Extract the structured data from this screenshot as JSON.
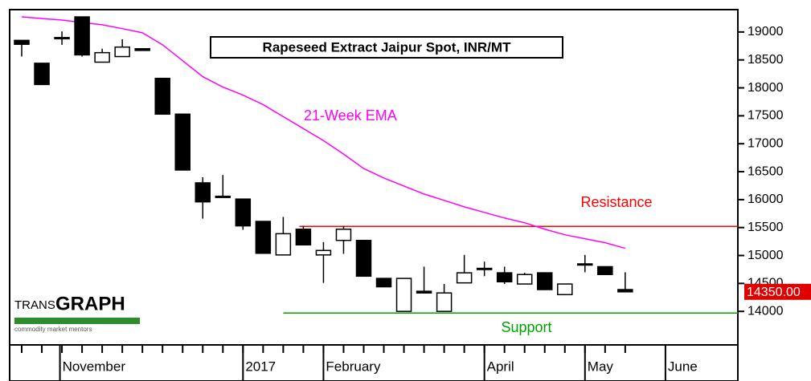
{
  "chart_data": {
    "type": "candlestick",
    "title": "Rapeseed Extract Jaipur Spot, INR/MT",
    "x": [
      0,
      1,
      2,
      3,
      4,
      5,
      6,
      7,
      8,
      9,
      10,
      11,
      12,
      13,
      14,
      15,
      16,
      17,
      18,
      19,
      20,
      21,
      22,
      23,
      24,
      25,
      26,
      27,
      28,
      29,
      30
    ],
    "open": [
      18850,
      18440,
      18880,
      19270,
      18460,
      18560,
      18700,
      18170,
      17530,
      16300,
      16060,
      16010,
      15610,
      15010,
      15470,
      15010,
      15270,
      15270,
      14590,
      14000,
      14360,
      14000,
      14510,
      14750,
      14690,
      14490,
      14690,
      14300,
      14830,
      14800,
      14390
    ],
    "high": [
      18850,
      18440,
      19010,
      19270,
      18700,
      18870,
      18700,
      18170,
      17530,
      16400,
      16440,
      16010,
      15610,
      15690,
      15530,
      15240,
      15530,
      15270,
      14590,
      14590,
      14800,
      14490,
      15010,
      14890,
      14800,
      14690,
      14690,
      14490,
      15010,
      14800,
      14700
    ],
    "low": [
      18560,
      18060,
      18770,
      18560,
      18460,
      18560,
      18670,
      17530,
      16530,
      15660,
      16050,
      15460,
      15040,
      15010,
      15190,
      14510,
      15030,
      14630,
      14440,
      14000,
      14330,
      14000,
      14510,
      14630,
      14490,
      14490,
      14390,
      14300,
      14700,
      14660,
      14350
    ],
    "close": [
      18780,
      18060,
      18900,
      18590,
      18630,
      18730,
      18670,
      17530,
      16530,
      15960,
      16050,
      15530,
      15040,
      15390,
      15190,
      15090,
      15470,
      14630,
      14440,
      14590,
      14330,
      14330,
      14690,
      14770,
      14530,
      14660,
      14390,
      14490,
      14850,
      14660,
      14350
    ],
    "up_color": "#ffffff",
    "down_color": "#000000",
    "ema": {
      "name": "21-Week EMA",
      "color": "#ff00ff",
      "values": [
        19271,
        19240,
        19214,
        19170,
        19129,
        19060,
        18986,
        18771,
        18486,
        18200,
        18014,
        17871,
        17700,
        17486,
        17271,
        17057,
        16814,
        16557,
        16386,
        16243,
        16100,
        15986,
        15871,
        15771,
        15671,
        15586,
        15471,
        15371,
        15300,
        15229,
        15129
      ]
    },
    "levels": [
      {
        "name": "Resistance",
        "value": 15520,
        "from": 13.8,
        "color": "#ff0000"
      },
      {
        "name": "Support",
        "value": 13970,
        "from": 13,
        "color": "#00a000"
      }
    ],
    "last_price": 14350,
    "last_price_label": "14350.00",
    "ylim": [
      13400,
      19400
    ],
    "yticks": [
      14000,
      14500,
      15000,
      15500,
      16000,
      16500,
      17000,
      17500,
      18000,
      18500,
      19000
    ],
    "xlim": [
      -0.6,
      35.6
    ],
    "xticks": [
      {
        "value": 1.9,
        "label": "November"
      },
      {
        "value": 11,
        "label": "2017"
      },
      {
        "value": 15,
        "label": "February"
      },
      {
        "value": 23,
        "label": "April"
      },
      {
        "value": 28,
        "label": "May"
      },
      {
        "value": 32,
        "label": "June"
      }
    ],
    "logo": {
      "a": "TRANS",
      "b": "GRAPH",
      "tagline": "commodity market mentors"
    }
  }
}
